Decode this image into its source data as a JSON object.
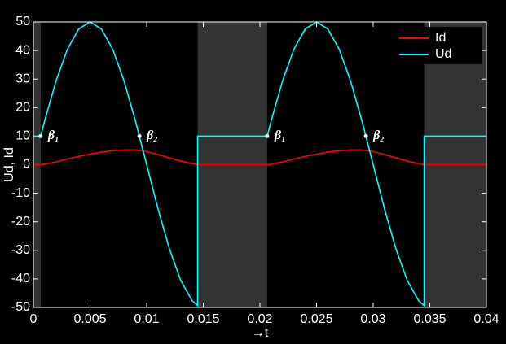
{
  "chart_data": {
    "type": "line",
    "xlabel": "→t",
    "ylabel": "Ud, Id",
    "x": [
      0,
      0.00064,
      0.001,
      0.002,
      0.003,
      0.004,
      0.005,
      0.006,
      0.007,
      0.008,
      0.009,
      0.01,
      0.011,
      0.012,
      0.013,
      0.014,
      0.0145,
      0.0145,
      0.015,
      0.016,
      0.017,
      0.018,
      0.019,
      0.02,
      0.02064,
      0.021,
      0.022,
      0.023,
      0.024,
      0.025,
      0.026,
      0.027,
      0.028,
      0.029,
      0.03,
      0.031,
      0.032,
      0.033,
      0.034,
      0.0345,
      0.0345,
      0.035,
      0.036,
      0.037,
      0.038,
      0.039,
      0.04
    ],
    "series": [
      {
        "name": "Id",
        "color": "#ff0000",
        "values": [
          0,
          0,
          0.2,
          1.0,
          2.0,
          2.9,
          3.7,
          4.4,
          4.9,
          5.2,
          5.2,
          4.6,
          3.6,
          2.4,
          1.3,
          0.4,
          0,
          0,
          0,
          0,
          0,
          0,
          0,
          0,
          0,
          0.2,
          1.0,
          2.0,
          2.9,
          3.7,
          4.4,
          4.9,
          5.2,
          5.2,
          4.6,
          3.6,
          2.4,
          1.3,
          0.4,
          0,
          0,
          0,
          0,
          0,
          0,
          0,
          0
        ]
      },
      {
        "name": "Ud",
        "color": "#00ffff",
        "values": [
          10,
          10,
          15.45,
          29.39,
          40.45,
          47.55,
          50,
          47.55,
          40.45,
          29.39,
          15.45,
          0,
          -15.45,
          -29.39,
          -40.45,
          -47.55,
          -49.38,
          10,
          10,
          10,
          10,
          10,
          10,
          10,
          10,
          15.45,
          29.39,
          40.45,
          47.55,
          50,
          47.55,
          40.45,
          29.39,
          15.45,
          0,
          -15.45,
          -29.39,
          -40.45,
          -47.55,
          -49.38,
          10,
          10,
          10,
          10,
          10,
          10,
          10
        ]
      }
    ],
    "shaded_regions": [
      [
        0,
        0.00064
      ],
      [
        0.0145,
        0.02064
      ],
      [
        0.0345,
        0.04
      ]
    ],
    "shade_color": "#333333",
    "annotations": [
      {
        "text": "β₁",
        "x": 0.00064,
        "y": 10
      },
      {
        "text": "β₂",
        "x": 0.00936,
        "y": 10
      },
      {
        "text": "β₁",
        "x": 0.02064,
        "y": 10
      },
      {
        "text": "β₂",
        "x": 0.02936,
        "y": 10
      }
    ],
    "xlim": [
      0,
      0.04
    ],
    "ylim": [
      -50,
      50
    ],
    "xticks": [
      0,
      0.005,
      0.01,
      0.015,
      0.02,
      0.025,
      0.03,
      0.035,
      0.04
    ],
    "yticks": [
      -50,
      -40,
      -30,
      -20,
      -10,
      0,
      10,
      20,
      30,
      40,
      50
    ],
    "legend": "upper right"
  }
}
